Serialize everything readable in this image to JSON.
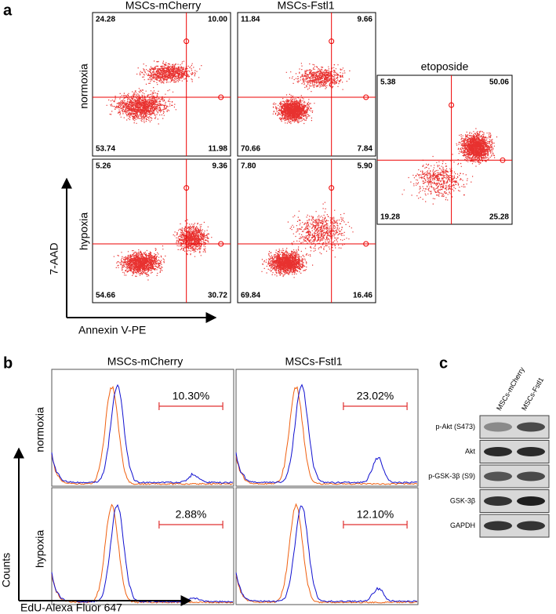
{
  "panel_a": {
    "label": "a",
    "columns": [
      "MSCs-mCherry",
      "MSCs-Fstl1"
    ],
    "rows": [
      "normoxia",
      "hypoxia"
    ],
    "y_axis": "7-AAD",
    "x_axis": "Annexin V-PE",
    "plots": [
      [
        [
          "24.28",
          "10.00",
          "53.74",
          "11.98"
        ],
        [
          "11.84",
          "9.66",
          "70.66",
          "7.84"
        ]
      ],
      [
        [
          "5.26",
          "9.36",
          "54.66",
          "30.72"
        ],
        [
          "7.80",
          "5.90",
          "69.84",
          "16.46"
        ]
      ]
    ],
    "etoposide": {
      "title": "etoposide",
      "quadrants": [
        "5.38",
        "50.06",
        "19.28",
        "25.28"
      ]
    }
  },
  "panel_b": {
    "label": "b",
    "columns": [
      "MSCs-mCherry",
      "MSCs-Fstl1"
    ],
    "rows": [
      "normoxia",
      "hypoxia"
    ],
    "y_axis": "Counts",
    "x_axis": "EdU-Alexa Fluor 647",
    "percentages": [
      [
        "10.30%",
        "23.02%"
      ],
      [
        "2.88%",
        "12.10%"
      ]
    ]
  },
  "panel_c": {
    "label": "c",
    "columns": [
      "MSCs-mCherry",
      "MSCs-Fstl1"
    ],
    "rows": [
      "p-Akt (S473)",
      "Akt",
      "p-GSK-3β (S9)",
      "GSK-3β",
      "GAPDH"
    ]
  }
}
